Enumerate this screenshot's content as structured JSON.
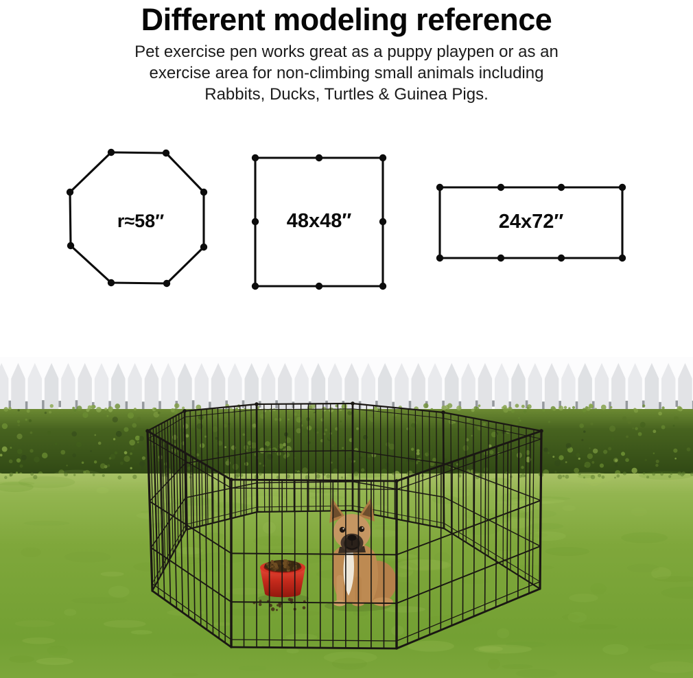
{
  "header": {
    "title": "Different modeling reference",
    "description_lines": [
      "Pet exercise pen works great as a puppy playpen or as an",
      "exercise area for non-climbing small animals including",
      "Rabbits, Ducks, Turtles & Guinea Pigs."
    ]
  },
  "diagrams": [
    {
      "shape": "octagon",
      "label": "r≈58″",
      "joint_dots": 8
    },
    {
      "shape": "square",
      "label": "48x48″",
      "joint_dots": 8
    },
    {
      "shape": "rectangle",
      "label": "24x72″",
      "joint_dots": 8
    }
  ],
  "scene": {
    "subject": "8-panel black wire exercise pen on a lawn with a dog and a red food bowl",
    "colors": {
      "wire": "#1a1713",
      "grass_top": "#a9c167",
      "grass_mid": "#7fa73b",
      "grass_deep": "#73a033",
      "hedge": "#47631f",
      "hedge_dark": "#2f4714",
      "hedge_light": "#7d9b41",
      "fence": "#e5e6e9",
      "fence_gap": "#fbfbfc",
      "bowl_red": "#c62a1c",
      "kibble_brown": "#3c2a13",
      "dog_fawn": "#bd8a52",
      "dog_chest": "#efe8da",
      "dog_mask": "#2a211a"
    }
  }
}
